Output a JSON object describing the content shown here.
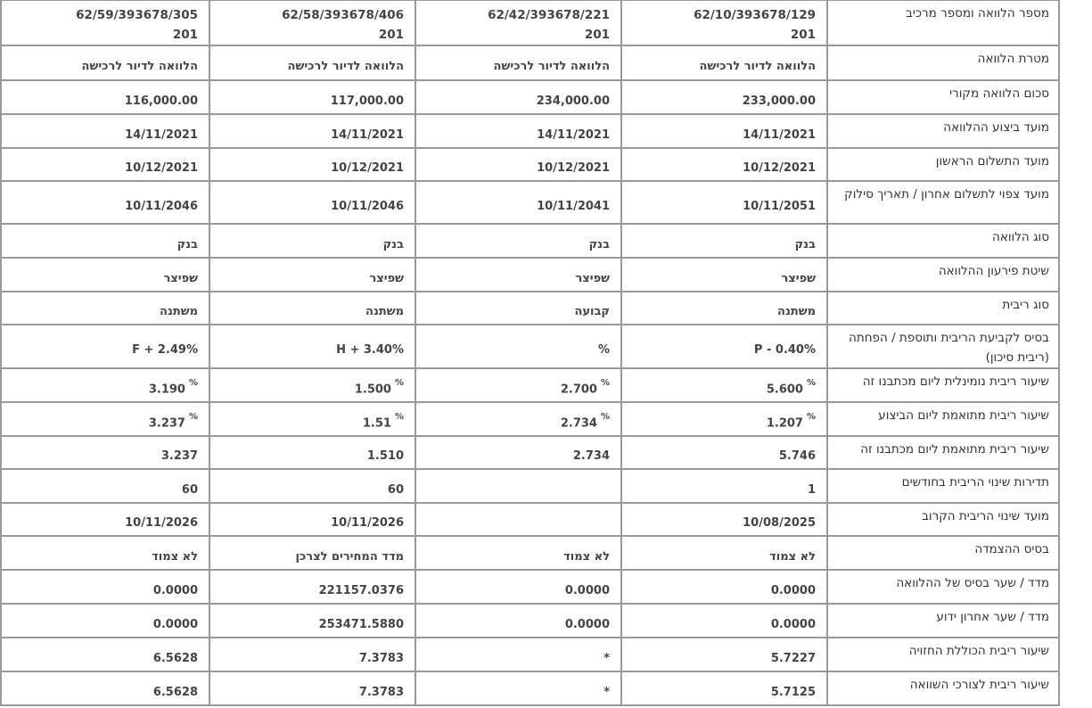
{
  "table": {
    "rows": [
      {
        "label": "מספר הלוואה ומספר מרכיב",
        "values": [
          "62/10/393678/129\n201",
          "62/42/393678/221\n201",
          "62/58/393678/406\n201",
          "62/59/393678/305\n201"
        ]
      },
      {
        "label": "מטרת הלוואה",
        "values": [
          "הלוואה לדיור לרכישה",
          "הלוואה לדיור לרכישה",
          "הלוואה לדיור לרכישה",
          "הלוואה לדיור לרכישה"
        ]
      },
      {
        "label": "סכום הלוואה מקורי",
        "values": [
          "233,000.00",
          "234,000.00",
          "117,000.00",
          "116,000.00"
        ]
      },
      {
        "label": "מועד ביצוע ההלוואה",
        "values": [
          "14/11/2021",
          "14/11/2021",
          "14/11/2021",
          "14/11/2021"
        ]
      },
      {
        "label": "מועד התשלום הראשון",
        "values": [
          "10/12/2021",
          "10/12/2021",
          "10/12/2021",
          "10/12/2021"
        ]
      },
      {
        "label": "מועד צפוי לתשלום אחרון / תאריך סילוק",
        "values": [
          "10/11/2051",
          "10/11/2041",
          "10/11/2046",
          "10/11/2046"
        ]
      },
      {
        "label": "סוג הלוואה",
        "values": [
          "בנק",
          "בנק",
          "בנק",
          "בנק"
        ]
      },
      {
        "label": "שיטת פירעון ההלוואה",
        "values": [
          "שפיצר",
          "שפיצר",
          "שפיצר",
          "שפיצר"
        ]
      },
      {
        "label": "סוג ריבית",
        "values": [
          "משתנה",
          "קבועה",
          "משתנה",
          "משתנה"
        ]
      },
      {
        "label": "בסיס לקביעת הריבית ותוספת / הפחתה (ריבית סיכון)",
        "values": [
          "P - 0.40%",
          "%",
          "H + 3.40%",
          "F + 2.49%"
        ]
      },
      {
        "label": "שיעור ריבית נומינלית ליום מכתבנו זה",
        "values": [
          "5.600",
          "2.700",
          "1.500",
          "3.190"
        ],
        "percent": true
      },
      {
        "label": "שיעור ריבית מתואמת ליום הביצוע",
        "values": [
          "1.207",
          "2.734",
          "1.51",
          "3.237"
        ],
        "percent": true
      },
      {
        "label": "שיעור ריבית מתואמת ליום מכתבנו זה",
        "values": [
          "5.746",
          "2.734",
          "1.510",
          "3.237"
        ]
      },
      {
        "label": "תדירות שינוי הריבית בחודשים",
        "values": [
          "1",
          "",
          "60",
          "60"
        ]
      },
      {
        "label": "מועד שינוי הריבית הקרוב",
        "values": [
          "10/08/2025",
          "",
          "10/11/2026",
          "10/11/2026"
        ]
      },
      {
        "label": "בסיס ההצמדה",
        "values": [
          "לא צמוד",
          "לא צמוד",
          "מדד המחירים לצרכן",
          "לא צמוד"
        ]
      },
      {
        "label": "מדד / שער בסיס של ההלוואה",
        "values": [
          "0.0000",
          "0.0000",
          "221157.0376",
          "0.0000"
        ]
      },
      {
        "label": "מדד / שער אחרון ידוע",
        "values": [
          "0.0000",
          "0.0000",
          "253471.5880",
          "0.0000"
        ]
      },
      {
        "label": "שיעור ריבית הכוללת החזויה",
        "values": [
          "5.7227",
          "*",
          "7.3783",
          "6.5628"
        ]
      },
      {
        "label": "שיעור ריבית לצורכי השוואה",
        "values": [
          "5.7125",
          "*",
          "7.3783",
          "6.5628"
        ]
      }
    ]
  }
}
